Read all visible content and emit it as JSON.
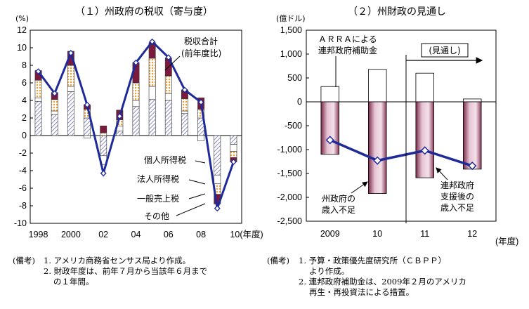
{
  "left_notes": {
    "head": "(備考)",
    "line1": "1. アメリカ商務省センサス局より作成。",
    "line2": "2. 財政年度は、前年７月から当該年６月まで",
    "line3": "の１年間。"
  },
  "right_notes": {
    "head": "(備考)",
    "line1": "1. 予算・政策優先度研究所（ＣＢＰＰ）",
    "line2": "より作成。",
    "line3": "2. 連邦政府補助金は、2009年２月のアメリカ",
    "line4": "再生・再投資法による措置。"
  },
  "colors": {
    "hatch": "#5a5ab0",
    "dotted": "#e9a23c",
    "maroon": "#7a1a3c",
    "line": "#1f2a9a",
    "bar_pink": "#e8c8d8"
  },
  "chart_data": [
    {
      "type": "bar",
      "title": "（１）州政府の税収（寄与度）",
      "unit": "(%)",
      "xlabel_suffix": "10(年度)",
      "ylim": [
        -10,
        12
      ],
      "yticks": [
        -10,
        -8,
        -6,
        -4,
        -2,
        0,
        2,
        4,
        6,
        8,
        10,
        12
      ],
      "x": [
        1998,
        1999,
        2000,
        2001,
        2002,
        2003,
        2004,
        2005,
        2006,
        2007,
        2008,
        2009,
        2010
      ],
      "xtick_labels": [
        "1998",
        "",
        "2000",
        "",
        "02",
        "",
        "04",
        "",
        "06",
        "",
        "08",
        "",
        "10"
      ],
      "series": [
        {
          "name": "個人所得税",
          "values": [
            3.9,
            2.4,
            5.0,
            2.0,
            -2.3,
            0.5,
            3.3,
            4.1,
            4.0,
            2.5,
            2.0,
            -4.5,
            -1.0
          ]
        },
        {
          "name": "法人所得税",
          "values": [
            0.4,
            0.4,
            0.6,
            -0.3,
            -1.0,
            0.6,
            0.7,
            1.5,
            0.8,
            0.3,
            -0.6,
            -1.0,
            -0.8
          ]
        },
        {
          "name": "一般売上税",
          "values": [
            2.0,
            1.3,
            2.4,
            1.0,
            0.3,
            0.7,
            2.0,
            3.2,
            2.0,
            1.4,
            1.0,
            -1.2,
            -0.7
          ]
        },
        {
          "name": "その他",
          "values": [
            1.1,
            0.8,
            1.6,
            0.5,
            0.8,
            1.1,
            2.3,
            1.8,
            2.0,
            1.0,
            1.3,
            -1.1,
            -0.5
          ]
        },
        {
          "name": "税収合計(前年度比)",
          "values": [
            7.3,
            4.8,
            9.4,
            3.5,
            -4.3,
            2.2,
            8.3,
            10.7,
            8.9,
            5.2,
            3.8,
            -8.3,
            -3.0
          ]
        }
      ],
      "labels": {
        "total_line1": "税収合計",
        "total_line2": "(前年度比)"
      }
    },
    {
      "type": "bar",
      "title": "（２）州財政の見通し",
      "unit": "(億ドル)",
      "xlabel_suffix": "(年度)",
      "ylim": [
        -2500,
        1500
      ],
      "yticks": [
        -2500,
        -2000,
        -1500,
        -1000,
        -500,
        0,
        500,
        1000,
        1500
      ],
      "ytick_labels": [
        "-2,500",
        "-2,000",
        "-1,500",
        "-1,000",
        "-500",
        "0",
        "500",
        "1,000",
        "1,500"
      ],
      "categories": [
        "2009",
        "10",
        "11",
        "12"
      ],
      "series": [
        {
          "name": "ARRAによる連邦政府補助金",
          "values": [
            320,
            680,
            600,
            60
          ]
        },
        {
          "name": "州政府の歳入不足",
          "values": [
            -1100,
            -1920,
            -1590,
            -1410
          ]
        },
        {
          "name": "連邦政府支援後の歳入不足",
          "values": [
            -800,
            -1230,
            -1020,
            -1340
          ]
        }
      ],
      "labels": {
        "arra_line1": "ＡＲＲＡによる",
        "arra_line2": "連邦政府補助金",
        "forecast": "(見通し)",
        "shortfall_line1": "州政府の",
        "shortfall_line2": "歳入不足",
        "after_line1": "連邦政府",
        "after_line2": "支援後の",
        "after_line3": "歳入不足"
      }
    }
  ]
}
